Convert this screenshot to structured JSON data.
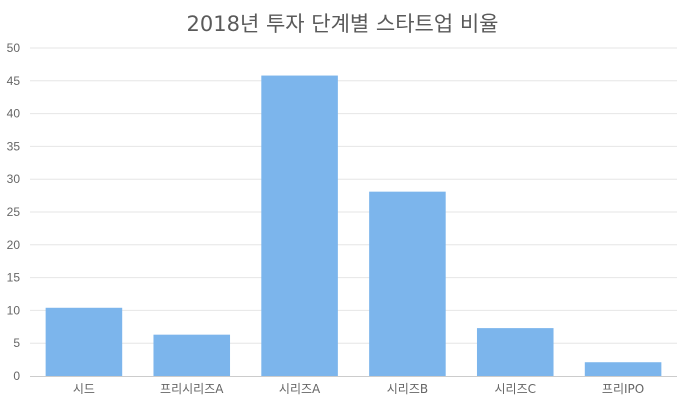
{
  "chart_data": {
    "type": "bar",
    "title": "2018년 투자 단계별 스타트업 비율",
    "xlabel": "",
    "ylabel": "",
    "categories": [
      "시드",
      "프리시리즈A",
      "시리즈A",
      "시리즈B",
      "시리즈C",
      "프리IPO"
    ],
    "values": [
      10.4,
      6.3,
      45.8,
      28.1,
      7.3,
      2.1
    ],
    "ylim": [
      0,
      50
    ],
    "yticks": [
      "0",
      "5",
      "10",
      "15",
      "20",
      "25",
      "30",
      "35",
      "40",
      "45",
      "50"
    ],
    "grid": true,
    "legend": "none",
    "colors": {
      "bar": "#7cb5ec",
      "grid": "#e6e6e6",
      "axis": "#cccccc",
      "text": "#666666",
      "title": "#5a5a5a"
    }
  }
}
